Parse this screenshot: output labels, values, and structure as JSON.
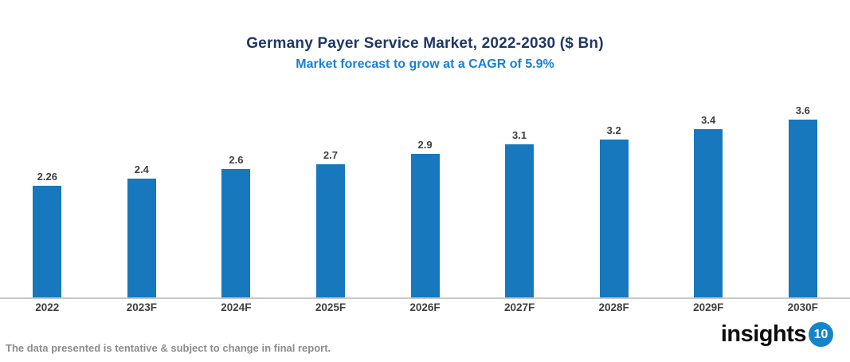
{
  "header": {
    "title": "Germany Payer Service Market, 2022-2030 ($ Bn)",
    "subtitle": "Market forecast to grow at a CAGR of 5.9%"
  },
  "chart_data": {
    "type": "bar",
    "title": "Germany Payer Service Market, 2022-2030 ($ Bn)",
    "subtitle": "Market forecast to grow at a CAGR of 5.9%",
    "categories": [
      "2022",
      "2023F",
      "2024F",
      "2025F",
      "2026F",
      "2027F",
      "2028F",
      "2029F",
      "2030F"
    ],
    "values": [
      2.26,
      2.4,
      2.6,
      2.7,
      2.9,
      3.1,
      3.2,
      3.4,
      3.6
    ],
    "value_labels": [
      "2.26",
      "2.4",
      "2.6",
      "2.7",
      "2.9",
      "3.1",
      "3.2",
      "3.4",
      "3.6"
    ],
    "xlabel": "",
    "ylabel": "",
    "ylim": [
      0,
      4
    ],
    "grid": false,
    "legend": false,
    "bar_color": "#1778BE",
    "value_label_color": "#404040",
    "axis_line_color": "#C8C8C8"
  },
  "colors": {
    "title": "#1F3864",
    "subtitle": "#1681D9",
    "xlabel": "#3F3F3F",
    "disclaimer": "#8C8C8C",
    "logo_circle": "#1585C8"
  },
  "footer": {
    "disclaimer": "The data presented is tentative & subject to change in final report.",
    "logo_text": "insights",
    "logo_number": "10"
  }
}
